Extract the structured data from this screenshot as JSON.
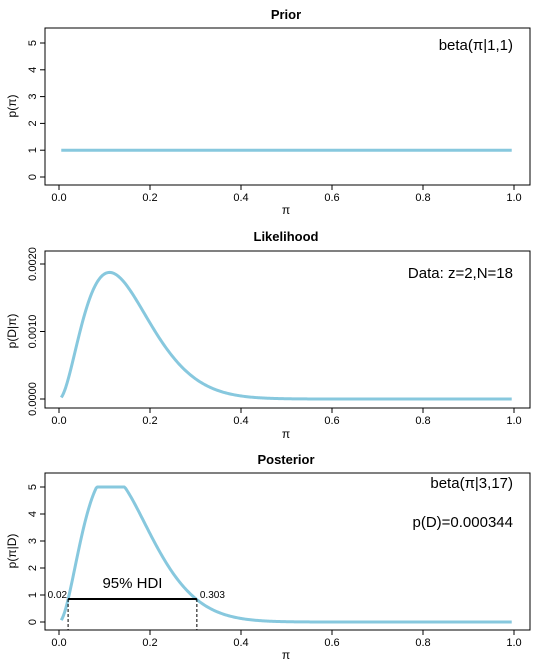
{
  "chart_data": [
    {
      "type": "line",
      "title": "Prior",
      "xlabel": "π",
      "ylabel": "p(π)",
      "xlim": [
        0,
        1
      ],
      "ylim": [
        0,
        5
      ],
      "xticks": [
        "0.0",
        "0.2",
        "0.4",
        "0.6",
        "0.8",
        "1.0"
      ],
      "yticks": [
        "0",
        "1",
        "2",
        "3",
        "4",
        "5"
      ],
      "curve": {
        "kind": "beta",
        "a": 1,
        "b": 1,
        "scale": 1
      },
      "annotations": [
        "beta(π|1,1)"
      ],
      "grid": false,
      "color": "#87C8DE"
    },
    {
      "type": "line",
      "title": "Likelihood",
      "xlabel": "π",
      "ylabel": "p(D|π)",
      "xlim": [
        0,
        1
      ],
      "ylim": [
        0,
        0.002
      ],
      "xticks": [
        "0.0",
        "0.2",
        "0.4",
        "0.6",
        "0.8",
        "1.0"
      ],
      "yticks": [
        "0.0000",
        "0.0010",
        "0.0020"
      ],
      "curve": {
        "kind": "bernoulli_likelihood",
        "z": 2,
        "N": 18
      },
      "annotations": [
        "Data: z=2,N=18"
      ],
      "grid": false,
      "color": "#87C8DE"
    },
    {
      "type": "line",
      "title": "Posterior",
      "xlabel": "π",
      "ylabel": "p(π|D)",
      "xlim": [
        0,
        1
      ],
      "ylim": [
        0,
        5
      ],
      "xticks": [
        "0.0",
        "0.2",
        "0.4",
        "0.6",
        "0.8",
        "1.0"
      ],
      "yticks": [
        "0",
        "1",
        "2",
        "3",
        "4",
        "5"
      ],
      "curve": {
        "kind": "beta",
        "a": 3,
        "b": 17,
        "scale": 1
      },
      "annotations": [
        "beta(π|3,17)",
        "p(D)=0.000344"
      ],
      "hdi": {
        "label": "95% HDI",
        "low": 0.02,
        "high": 0.303,
        "low_label": "0.02",
        "high_label": "0.303",
        "height": 0.85
      },
      "grid": false,
      "color": "#87C8DE"
    }
  ]
}
